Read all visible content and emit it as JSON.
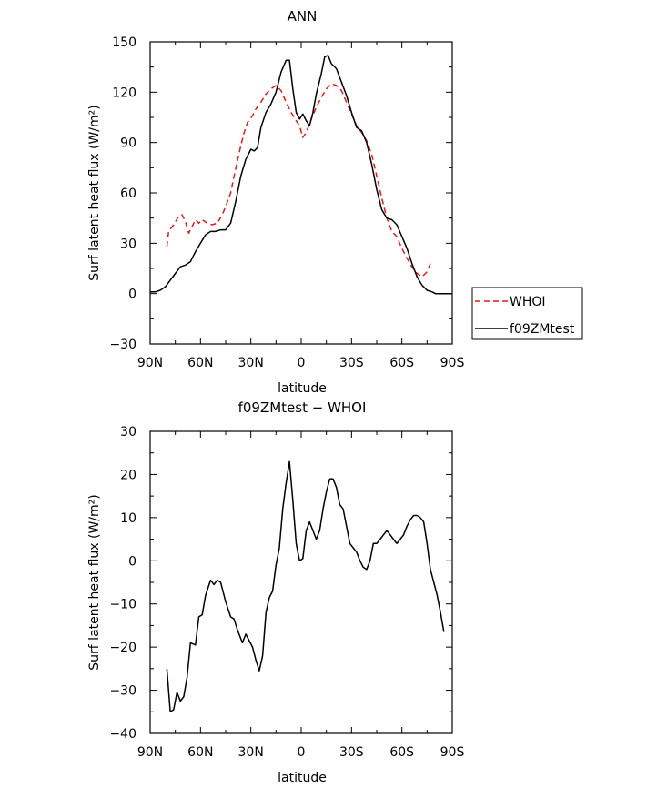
{
  "chart_data": [
    {
      "type": "line",
      "title": "ANN",
      "xlabel": "latitude",
      "ylabel": "Surf latent heat flux (W/m²)",
      "xlim": [
        90,
        -90
      ],
      "ylim": [
        -30,
        150
      ],
      "xticks": [
        90,
        60,
        30,
        0,
        -30,
        -60,
        -90
      ],
      "xticklabels": [
        "90N",
        "60N",
        "30N",
        "0",
        "30S",
        "60S",
        "90S"
      ],
      "yticks": [
        -30,
        0,
        30,
        60,
        90,
        120,
        150
      ],
      "yticklabels": [
        "−30",
        "0",
        "30",
        "60",
        "90",
        "120",
        "150"
      ],
      "legend_position": "right",
      "series": [
        {
          "name": "WHOI",
          "color": "#e8191b",
          "dash": "dashed",
          "points": [
            [
              80,
              28
            ],
            [
              79,
              37
            ],
            [
              76,
              41
            ],
            [
              73,
              46
            ],
            [
              71,
              47
            ],
            [
              69,
              43
            ],
            [
              67,
              36
            ],
            [
              64,
              42
            ],
            [
              63,
              44
            ],
            [
              61,
              42
            ],
            [
              59,
              44
            ],
            [
              56,
              42
            ],
            [
              53,
              41
            ],
            [
              50,
              42
            ],
            [
              47,
              47
            ],
            [
              45,
              52
            ],
            [
              42,
              60
            ],
            [
              40,
              70
            ],
            [
              38,
              79
            ],
            [
              36,
              88
            ],
            [
              34,
              96
            ],
            [
              32,
              102
            ],
            [
              29,
              106
            ],
            [
              27,
              110
            ],
            [
              24,
              114
            ],
            [
              21,
              119
            ],
            [
              18,
              122
            ],
            [
              15,
              124
            ],
            [
              12,
              121
            ],
            [
              9,
              114
            ],
            [
              6,
              108
            ],
            [
              3,
              103
            ],
            [
              1,
              100
            ],
            [
              -1,
              93
            ],
            [
              -3,
              96
            ],
            [
              -6,
              104
            ],
            [
              -9,
              111
            ],
            [
              -12,
              117
            ],
            [
              -15,
              122
            ],
            [
              -18,
              125
            ],
            [
              -21,
              124
            ],
            [
              -24,
              121
            ],
            [
              -27,
              114
            ],
            [
              -30,
              107
            ],
            [
              -33,
              100
            ],
            [
              -36,
              96
            ],
            [
              -39,
              91
            ],
            [
              -42,
              83
            ],
            [
              -45,
              70
            ],
            [
              -48,
              57
            ],
            [
              -51,
              45
            ],
            [
              -54,
              37
            ],
            [
              -57,
              34
            ],
            [
              -60,
              27
            ],
            [
              -63,
              21
            ],
            [
              -66,
              16
            ],
            [
              -69,
              12
            ],
            [
              -72,
              10
            ],
            [
              -75,
              13
            ],
            [
              -77,
              18
            ]
          ]
        },
        {
          "name": "f09ZMtest",
          "color": "#000000",
          "dash": "solid",
          "points": [
            [
              90,
              1
            ],
            [
              87,
              1
            ],
            [
              84,
              2
            ],
            [
              81,
              4
            ],
            [
              78,
              8
            ],
            [
              75,
              12
            ],
            [
              72,
              16
            ],
            [
              69,
              17
            ],
            [
              66,
              19
            ],
            [
              63,
              25
            ],
            [
              60,
              30
            ],
            [
              57,
              35
            ],
            [
              54,
              37
            ],
            [
              51,
              37
            ],
            [
              48,
              38
            ],
            [
              45,
              38
            ],
            [
              42,
              42
            ],
            [
              39,
              55
            ],
            [
              36,
              70
            ],
            [
              33,
              80
            ],
            [
              30,
              86
            ],
            [
              28,
              85
            ],
            [
              26,
              87
            ],
            [
              24,
              99
            ],
            [
              21,
              108
            ],
            [
              18,
              113
            ],
            [
              15,
              120
            ],
            [
              12,
              132
            ],
            [
              9,
              139
            ],
            [
              7,
              139
            ],
            [
              5,
              122
            ],
            [
              3,
              108
            ],
            [
              1,
              104
            ],
            [
              -1,
              107
            ],
            [
              -3,
              103
            ],
            [
              -5,
              100
            ],
            [
              -7,
              108
            ],
            [
              -9,
              119
            ],
            [
              -12,
              131
            ],
            [
              -14,
              141
            ],
            [
              -16,
              142
            ],
            [
              -18,
              137
            ],
            [
              -21,
              134
            ],
            [
              -24,
              126
            ],
            [
              -27,
              118
            ],
            [
              -30,
              108
            ],
            [
              -33,
              99
            ],
            [
              -36,
              97
            ],
            [
              -39,
              90
            ],
            [
              -42,
              77
            ],
            [
              -45,
              62
            ],
            [
              -48,
              50
            ],
            [
              -51,
              45
            ],
            [
              -54,
              44
            ],
            [
              -57,
              41
            ],
            [
              -60,
              34
            ],
            [
              -63,
              27
            ],
            [
              -66,
              18
            ],
            [
              -69,
              10
            ],
            [
              -72,
              5
            ],
            [
              -75,
              2
            ],
            [
              -78,
              1
            ],
            [
              -80,
              0
            ],
            [
              -84,
              0
            ],
            [
              -88,
              0
            ],
            [
              -90,
              0
            ]
          ]
        }
      ]
    },
    {
      "type": "line",
      "title": "f09ZMtest − WHOI",
      "xlabel": "latitude",
      "ylabel": "Surf latent heat flux (W/m²)",
      "xlim": [
        90,
        -90
      ],
      "ylim": [
        -40,
        30
      ],
      "xticks": [
        90,
        60,
        30,
        0,
        -30,
        -60,
        -90
      ],
      "xticklabels": [
        "90N",
        "60N",
        "30N",
        "0",
        "30S",
        "60S",
        "90S"
      ],
      "yticks": [
        -40,
        -30,
        -20,
        -10,
        0,
        10,
        20,
        30
      ],
      "yticklabels": [
        "−40",
        "−30",
        "−20",
        "−10",
        "0",
        "10",
        "20",
        "30"
      ],
      "series": [
        {
          "color": "#000000",
          "dash": "solid",
          "points": [
            [
              80,
              -25
            ],
            [
              78,
              -35
            ],
            [
              76,
              -34.5
            ],
            [
              74,
              -30.5
            ],
            [
              72,
              -32.5
            ],
            [
              70,
              -31.5
            ],
            [
              68,
              -27
            ],
            [
              66,
              -19
            ],
            [
              63,
              -19.5
            ],
            [
              61,
              -13
            ],
            [
              59,
              -12.5
            ],
            [
              57,
              -8
            ],
            [
              54,
              -4.5
            ],
            [
              52,
              -5.5
            ],
            [
              50,
              -4.5
            ],
            [
              48,
              -5
            ],
            [
              45,
              -9.5
            ],
            [
              42,
              -13
            ],
            [
              40,
              -13.5
            ],
            [
              38,
              -16
            ],
            [
              35,
              -19
            ],
            [
              33,
              -17
            ],
            [
              31,
              -18.5
            ],
            [
              29,
              -20
            ],
            [
              27,
              -23
            ],
            [
              25,
              -25.5
            ],
            [
              23,
              -22
            ],
            [
              21,
              -12
            ],
            [
              19,
              -8.5
            ],
            [
              17,
              -7
            ],
            [
              15,
              -1
            ],
            [
              13,
              3
            ],
            [
              11,
              12
            ],
            [
              9,
              18
            ],
            [
              7,
              23
            ],
            [
              5,
              14
            ],
            [
              3,
              4
            ],
            [
              1,
              0
            ],
            [
              -1,
              0.5
            ],
            [
              -3,
              7
            ],
            [
              -5,
              9
            ],
            [
              -7,
              7
            ],
            [
              -9,
              5
            ],
            [
              -11,
              7
            ],
            [
              -13,
              12
            ],
            [
              -15,
              16
            ],
            [
              -17,
              19
            ],
            [
              -19,
              19
            ],
            [
              -21,
              17
            ],
            [
              -23,
              13
            ],
            [
              -25,
              12
            ],
            [
              -27,
              8
            ],
            [
              -29,
              4
            ],
            [
              -31,
              3
            ],
            [
              -33,
              2
            ],
            [
              -35,
              0
            ],
            [
              -37,
              -1.5
            ],
            [
              -39,
              -2
            ],
            [
              -41,
              0
            ],
            [
              -43,
              4
            ],
            [
              -45,
              4
            ],
            [
              -47,
              5
            ],
            [
              -49,
              6
            ],
            [
              -51,
              7
            ],
            [
              -53,
              6
            ],
            [
              -55,
              5
            ],
            [
              -57,
              4
            ],
            [
              -59,
              5
            ],
            [
              -61,
              6
            ],
            [
              -63,
              8
            ],
            [
              -65,
              9.5
            ],
            [
              -67,
              10.5
            ],
            [
              -69,
              10.5
            ],
            [
              -71,
              10
            ],
            [
              -73,
              9
            ],
            [
              -75,
              4
            ],
            [
              -77,
              -2
            ],
            [
              -79,
              -5
            ],
            [
              -81,
              -8
            ],
            [
              -83,
              -12
            ],
            [
              -85,
              -16.5
            ]
          ]
        }
      ]
    }
  ]
}
